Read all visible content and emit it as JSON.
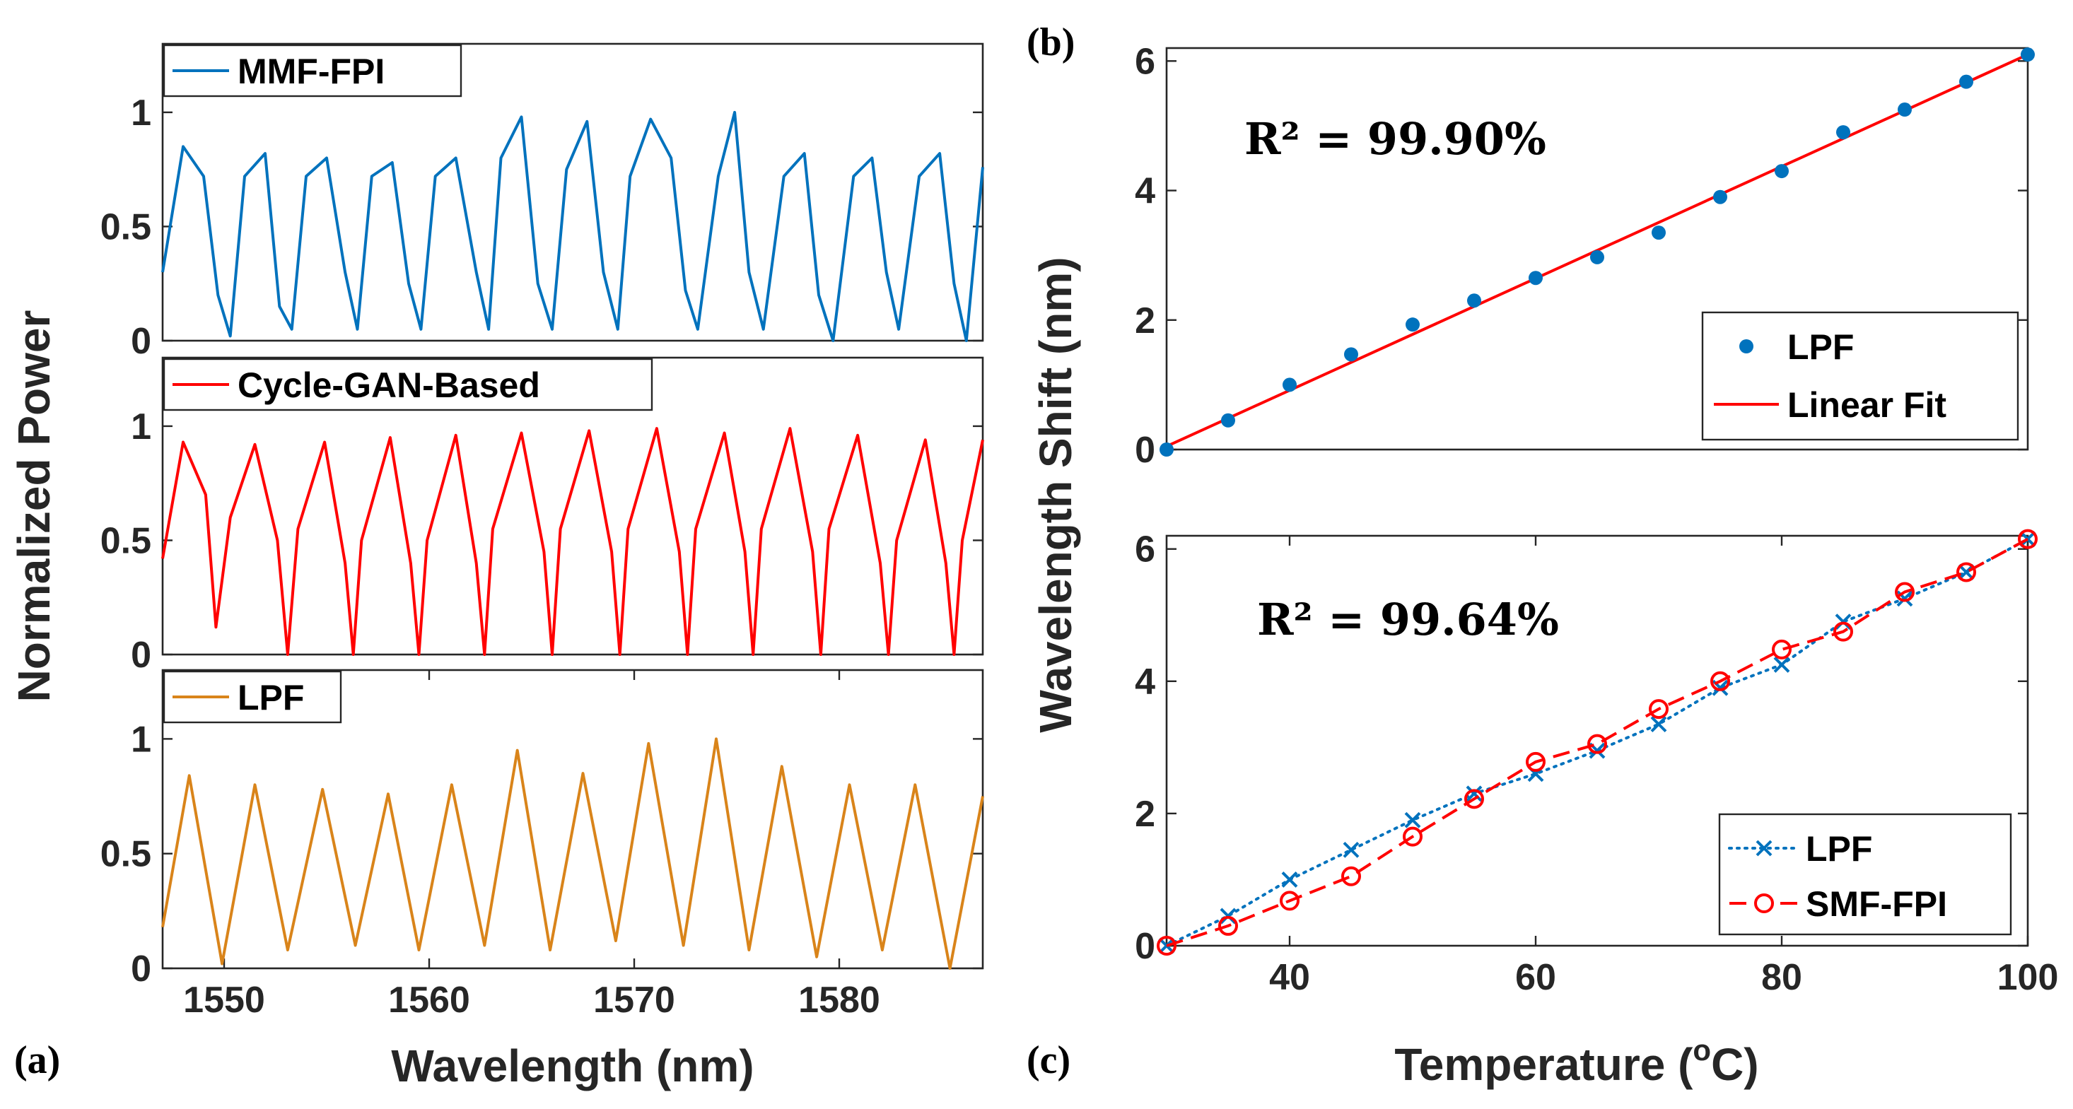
{
  "figure": {
    "panel_a_label": "(a)",
    "panel_b_label": "(b)",
    "panel_c_label": "(c)",
    "a_xlabel": "Wavelength (nm)",
    "a_ylabel": "Normalized Power",
    "bc_ylabel": "Wavelength Shift (nm)",
    "c_xlabel_prefix": "Temperature (",
    "c_xlabel_sup": "o",
    "c_xlabel_suffix": "C)"
  },
  "colors": {
    "mmf": "#0072BD",
    "cycle": "#FF0000",
    "lpf_spectrum": "#D9841A",
    "lpf_points": "#0072BD",
    "fit": "#FF0000",
    "smf": "#FF0000"
  },
  "chart_data": [
    {
      "id": "a1",
      "type": "line",
      "legend": "MMF-FPI",
      "xlim": [
        1547,
        1587
      ],
      "ylim": [
        0,
        1.3
      ],
      "yticks": [
        0,
        0.5,
        1
      ],
      "ytick_labels": [
        "0",
        "0.5",
        "1"
      ],
      "series": [
        {
          "name": "MMF-FPI",
          "x": [
            1547,
            1548,
            1549,
            1549.7,
            1550.3,
            1551,
            1552,
            1552.7,
            1553.3,
            1554,
            1555,
            1555.9,
            1556.5,
            1557.2,
            1558.2,
            1559,
            1559.6,
            1560.3,
            1561.3,
            1562.3,
            1562.9,
            1563.5,
            1564.5,
            1565.3,
            1566,
            1566.7,
            1567.7,
            1568.5,
            1569.2,
            1569.8,
            1570.8,
            1571.8,
            1572.5,
            1573.1,
            1574.1,
            1574.9,
            1575.6,
            1576.3,
            1577.3,
            1578.3,
            1579,
            1579.7,
            1580.7,
            1581.6,
            1582.3,
            1582.9,
            1583.9,
            1584.9,
            1585.6,
            1586.2,
            1587
          ],
          "y": [
            0.3,
            0.85,
            0.72,
            0.2,
            0.02,
            0.72,
            0.82,
            0.15,
            0.05,
            0.72,
            0.8,
            0.3,
            0.05,
            0.72,
            0.78,
            0.25,
            0.05,
            0.72,
            0.8,
            0.3,
            0.05,
            0.8,
            0.98,
            0.25,
            0.05,
            0.75,
            0.96,
            0.3,
            0.05,
            0.72,
            0.97,
            0.8,
            0.22,
            0.05,
            0.72,
            1.0,
            0.3,
            0.05,
            0.72,
            0.82,
            0.2,
            0.0,
            0.72,
            0.8,
            0.3,
            0.05,
            0.72,
            0.82,
            0.25,
            0.0,
            0.76
          ]
        }
      ]
    },
    {
      "id": "a2",
      "type": "line",
      "legend": "Cycle-GAN-Based",
      "xlim": [
        1547,
        1587
      ],
      "ylim": [
        0,
        1.3
      ],
      "yticks": [
        0,
        0.5,
        1
      ],
      "ytick_labels": [
        "0",
        "0.5",
        "1"
      ],
      "series": [
        {
          "name": "Cycle-GAN-Based",
          "x": [
            1547,
            1548,
            1549.1,
            1549.6,
            1550.3,
            1551.5,
            1552.6,
            1553.1,
            1553.6,
            1554.9,
            1555.9,
            1556.3,
            1556.7,
            1558.1,
            1559.1,
            1559.5,
            1559.9,
            1561.3,
            1562.3,
            1562.7,
            1563.1,
            1564.5,
            1565.6,
            1566,
            1566.4,
            1567.8,
            1568.9,
            1569.3,
            1569.7,
            1571.1,
            1572.2,
            1572.6,
            1573,
            1574.4,
            1575.4,
            1575.8,
            1576.2,
            1577.6,
            1578.7,
            1579.1,
            1579.5,
            1580.9,
            1582,
            1582.4,
            1582.8,
            1584.2,
            1585.2,
            1585.6,
            1586,
            1587
          ],
          "y": [
            0.42,
            0.93,
            0.7,
            0.12,
            0.6,
            0.92,
            0.5,
            0.0,
            0.55,
            0.93,
            0.4,
            0.0,
            0.5,
            0.95,
            0.4,
            0.0,
            0.5,
            0.96,
            0.4,
            0.0,
            0.55,
            0.97,
            0.45,
            0.0,
            0.55,
            0.98,
            0.45,
            0.0,
            0.55,
            0.99,
            0.45,
            0.0,
            0.55,
            0.97,
            0.45,
            0.0,
            0.55,
            0.99,
            0.45,
            0.0,
            0.55,
            0.96,
            0.4,
            0.0,
            0.5,
            0.94,
            0.4,
            0.0,
            0.5,
            0.94
          ]
        }
      ]
    },
    {
      "id": "a3",
      "type": "line",
      "legend": "LPF",
      "xlim": [
        1547,
        1587
      ],
      "ylim": [
        0,
        1.3
      ],
      "yticks": [
        0,
        0.5,
        1
      ],
      "ytick_labels": [
        "0",
        "0.5",
        "1"
      ],
      "xticks": [
        1550,
        1560,
        1570,
        1580
      ],
      "xtick_labels": [
        "1550",
        "1560",
        "1570",
        "1580"
      ],
      "series": [
        {
          "name": "LPF",
          "x": [
            1547,
            1548.3,
            1549.9,
            1551.5,
            1553.1,
            1554.8,
            1556.4,
            1558,
            1559.5,
            1561.1,
            1562.7,
            1564.3,
            1565.9,
            1567.5,
            1569.1,
            1570.7,
            1572.4,
            1574,
            1575.6,
            1577.2,
            1578.9,
            1580.5,
            1582.1,
            1583.7,
            1585.4,
            1587
          ],
          "y": [
            0.18,
            0.84,
            0.02,
            0.8,
            0.08,
            0.78,
            0.1,
            0.76,
            0.08,
            0.8,
            0.1,
            0.95,
            0.08,
            0.85,
            0.12,
            0.98,
            0.1,
            1.0,
            0.08,
            0.88,
            0.05,
            0.8,
            0.08,
            0.8,
            0.0,
            0.75
          ]
        }
      ]
    },
    {
      "id": "b",
      "type": "scatter",
      "annotation": "R² = 99.90%",
      "xlim": [
        30,
        100
      ],
      "ylim": [
        0,
        6.2
      ],
      "yticks": [
        0,
        2,
        4,
        6
      ],
      "ytick_labels": [
        "0",
        "2",
        "4",
        "6"
      ],
      "series": [
        {
          "name": "LPF",
          "x": [
            30,
            35,
            40,
            45,
            50,
            55,
            60,
            65,
            70,
            75,
            80,
            85,
            90,
            95,
            100
          ],
          "y": [
            0.0,
            0.45,
            1.0,
            1.47,
            1.93,
            2.3,
            2.65,
            2.97,
            3.35,
            3.9,
            4.3,
            4.9,
            5.25,
            5.68,
            6.1
          ]
        },
        {
          "name": "Linear Fit",
          "x": [
            30,
            100
          ],
          "y": [
            0.05,
            6.1
          ]
        }
      ]
    },
    {
      "id": "c",
      "type": "line",
      "annotation": "R² = 99.64%",
      "xlim": [
        30,
        100
      ],
      "ylim": [
        0,
        6.2
      ],
      "yticks": [
        0,
        2,
        4,
        6
      ],
      "ytick_labels": [
        "0",
        "2",
        "4",
        "6"
      ],
      "xticks": [
        40,
        60,
        80,
        100
      ],
      "xtick_labels": [
        "40",
        "60",
        "80",
        "100"
      ],
      "series": [
        {
          "name": "LPF",
          "x": [
            30,
            35,
            40,
            45,
            50,
            55,
            60,
            65,
            70,
            75,
            80,
            85,
            90,
            95,
            100
          ],
          "y": [
            0.0,
            0.45,
            1.0,
            1.45,
            1.9,
            2.3,
            2.6,
            2.95,
            3.35,
            3.9,
            4.25,
            4.9,
            5.25,
            5.65,
            6.15
          ]
        },
        {
          "name": "SMF-FPI",
          "x": [
            30,
            35,
            40,
            45,
            50,
            55,
            60,
            65,
            70,
            75,
            80,
            85,
            90,
            95,
            100
          ],
          "y": [
            0.0,
            0.3,
            0.68,
            1.05,
            1.65,
            2.22,
            2.78,
            3.05,
            3.58,
            4.0,
            4.48,
            4.75,
            5.35,
            5.65,
            6.15
          ]
        }
      ]
    }
  ]
}
